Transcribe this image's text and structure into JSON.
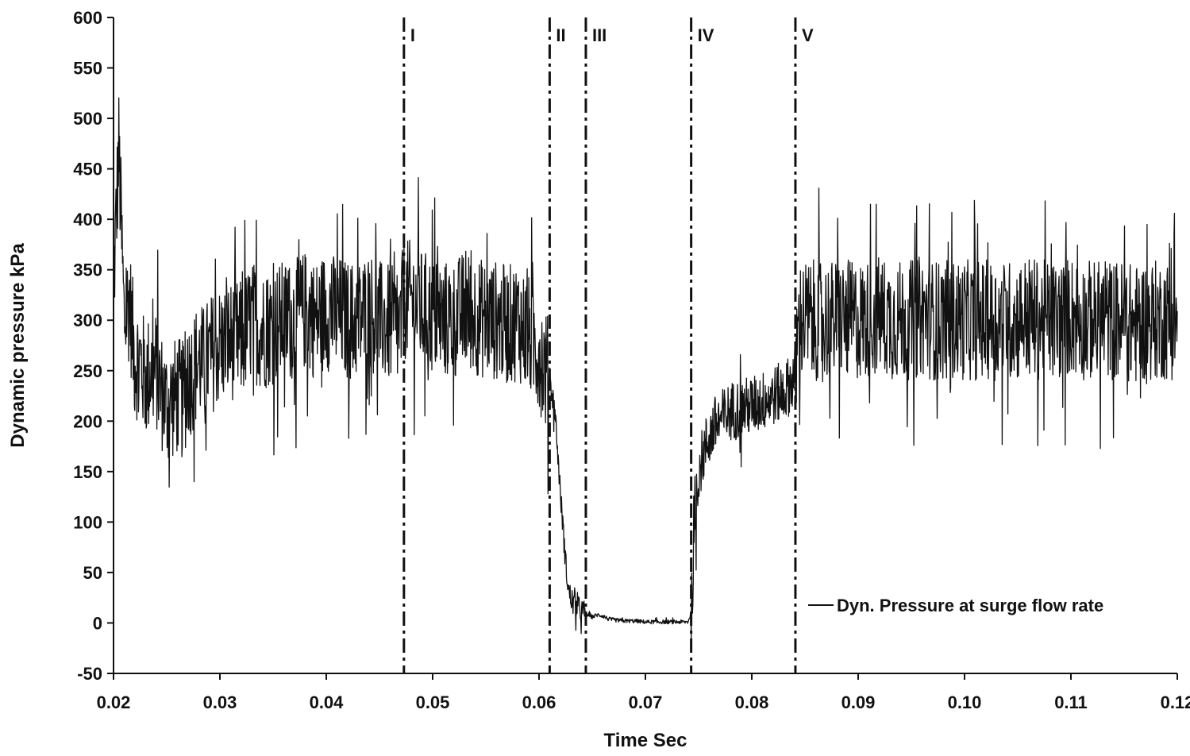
{
  "chart_data": {
    "type": "line",
    "title": "",
    "xlabel": "Time Sec",
    "ylabel": "Dynamic pressure kPa",
    "xlim": [
      0.02,
      0.12
    ],
    "ylim": [
      -50,
      600
    ],
    "xticks": [
      0.02,
      0.03,
      0.04,
      0.05,
      0.06,
      0.07,
      0.08,
      0.09,
      0.1,
      0.11,
      0.12
    ],
    "xtick_labels": [
      "0.02",
      "0.03",
      "0.04",
      "0.05",
      "0.06",
      "0.07",
      "0.08",
      "0.09",
      "0.10",
      "0.11",
      "0.12"
    ],
    "yticks": [
      -50,
      0,
      50,
      100,
      150,
      200,
      250,
      300,
      350,
      400,
      450,
      500,
      550,
      600
    ],
    "ytick_labels": [
      "-50",
      "0",
      "50",
      "100",
      "150",
      "200",
      "250",
      "300",
      "350",
      "400",
      "450",
      "500",
      "550",
      "600"
    ],
    "grid": false,
    "legend": {
      "position": "bottom-right",
      "entries": [
        "Dyn. Pressure at surge flow rate"
      ]
    },
    "regions": [
      {
        "label": "I",
        "x": 0.0473
      },
      {
        "label": "II",
        "x": 0.061
      },
      {
        "label": "III",
        "x": 0.0644
      },
      {
        "label": "IV",
        "x": 0.0743
      },
      {
        "label": "V",
        "x": 0.0841
      }
    ],
    "series": [
      {
        "name": "Dyn. Pressure at surge flow rate",
        "color": "#111111",
        "points": [
          [
            0.02,
            330
          ],
          [
            0.0205,
            470
          ],
          [
            0.021,
            300
          ],
          [
            0.0215,
            320
          ],
          [
            0.022,
            260
          ],
          [
            0.0225,
            260
          ],
          [
            0.023,
            240
          ],
          [
            0.0235,
            250
          ],
          [
            0.024,
            250
          ],
          [
            0.0245,
            230
          ],
          [
            0.025,
            215
          ],
          [
            0.0255,
            220
          ],
          [
            0.026,
            225
          ],
          [
            0.0265,
            220
          ],
          [
            0.027,
            240
          ],
          [
            0.0275,
            250
          ],
          [
            0.028,
            260
          ],
          [
            0.0285,
            255
          ],
          [
            0.029,
            265
          ],
          [
            0.0295,
            270
          ],
          [
            0.03,
            275
          ],
          [
            0.031,
            280
          ],
          [
            0.032,
            280
          ],
          [
            0.033,
            300
          ],
          [
            0.034,
            290
          ],
          [
            0.035,
            295
          ],
          [
            0.036,
            300
          ],
          [
            0.037,
            300
          ],
          [
            0.038,
            310
          ],
          [
            0.039,
            300
          ],
          [
            0.04,
            310
          ],
          [
            0.041,
            305
          ],
          [
            0.042,
            300
          ],
          [
            0.043,
            300
          ],
          [
            0.044,
            310
          ],
          [
            0.045,
            300
          ],
          [
            0.046,
            295
          ],
          [
            0.047,
            290
          ],
          [
            0.0473,
            320
          ],
          [
            0.048,
            320
          ],
          [
            0.049,
            310
          ],
          [
            0.05,
            305
          ],
          [
            0.051,
            300
          ],
          [
            0.052,
            300
          ],
          [
            0.053,
            310
          ],
          [
            0.054,
            305
          ],
          [
            0.055,
            300
          ],
          [
            0.056,
            300
          ],
          [
            0.057,
            295
          ],
          [
            0.058,
            300
          ],
          [
            0.059,
            285
          ],
          [
            0.06,
            270
          ],
          [
            0.0605,
            255
          ],
          [
            0.061,
            240
          ],
          [
            0.0615,
            210
          ],
          [
            0.062,
            130
          ],
          [
            0.0625,
            60
          ],
          [
            0.0628,
            30
          ],
          [
            0.0632,
            20
          ],
          [
            0.0636,
            15
          ],
          [
            0.064,
            12
          ],
          [
            0.0644,
            9
          ],
          [
            0.065,
            6
          ],
          [
            0.0655,
            8
          ],
          [
            0.066,
            7
          ],
          [
            0.0665,
            4
          ],
          [
            0.067,
            3
          ],
          [
            0.068,
            2
          ],
          [
            0.069,
            2
          ],
          [
            0.07,
            1
          ],
          [
            0.071,
            1
          ],
          [
            0.072,
            1
          ],
          [
            0.073,
            1
          ],
          [
            0.074,
            1
          ],
          [
            0.0743,
            10
          ],
          [
            0.0746,
            80
          ],
          [
            0.075,
            150
          ],
          [
            0.0755,
            170
          ],
          [
            0.076,
            185
          ],
          [
            0.0765,
            195
          ],
          [
            0.077,
            200
          ],
          [
            0.0775,
            205
          ],
          [
            0.078,
            210
          ],
          [
            0.079,
            213
          ],
          [
            0.08,
            215
          ],
          [
            0.081,
            220
          ],
          [
            0.082,
            225
          ],
          [
            0.083,
            230
          ],
          [
            0.0835,
            235
          ],
          [
            0.0841,
            245
          ],
          [
            0.0845,
            300
          ],
          [
            0.085,
            300
          ],
          [
            0.086,
            300
          ],
          [
            0.087,
            300
          ],
          [
            0.088,
            300
          ],
          [
            0.089,
            300
          ],
          [
            0.09,
            300
          ],
          [
            0.091,
            300
          ],
          [
            0.092,
            305
          ],
          [
            0.093,
            300
          ],
          [
            0.094,
            300
          ],
          [
            0.095,
            300
          ],
          [
            0.096,
            305
          ],
          [
            0.097,
            300
          ],
          [
            0.098,
            300
          ],
          [
            0.099,
            300
          ],
          [
            0.1,
            300
          ],
          [
            0.101,
            300
          ],
          [
            0.102,
            300
          ],
          [
            0.103,
            300
          ],
          [
            0.104,
            300
          ],
          [
            0.105,
            300
          ],
          [
            0.106,
            305
          ],
          [
            0.107,
            300
          ],
          [
            0.108,
            300
          ],
          [
            0.109,
            300
          ],
          [
            0.11,
            305
          ],
          [
            0.111,
            300
          ],
          [
            0.112,
            300
          ],
          [
            0.113,
            300
          ],
          [
            0.114,
            300
          ],
          [
            0.115,
            300
          ],
          [
            0.116,
            295
          ],
          [
            0.117,
            300
          ],
          [
            0.118,
            300
          ],
          [
            0.119,
            300
          ],
          [
            0.12,
            300
          ]
        ]
      }
    ]
  }
}
